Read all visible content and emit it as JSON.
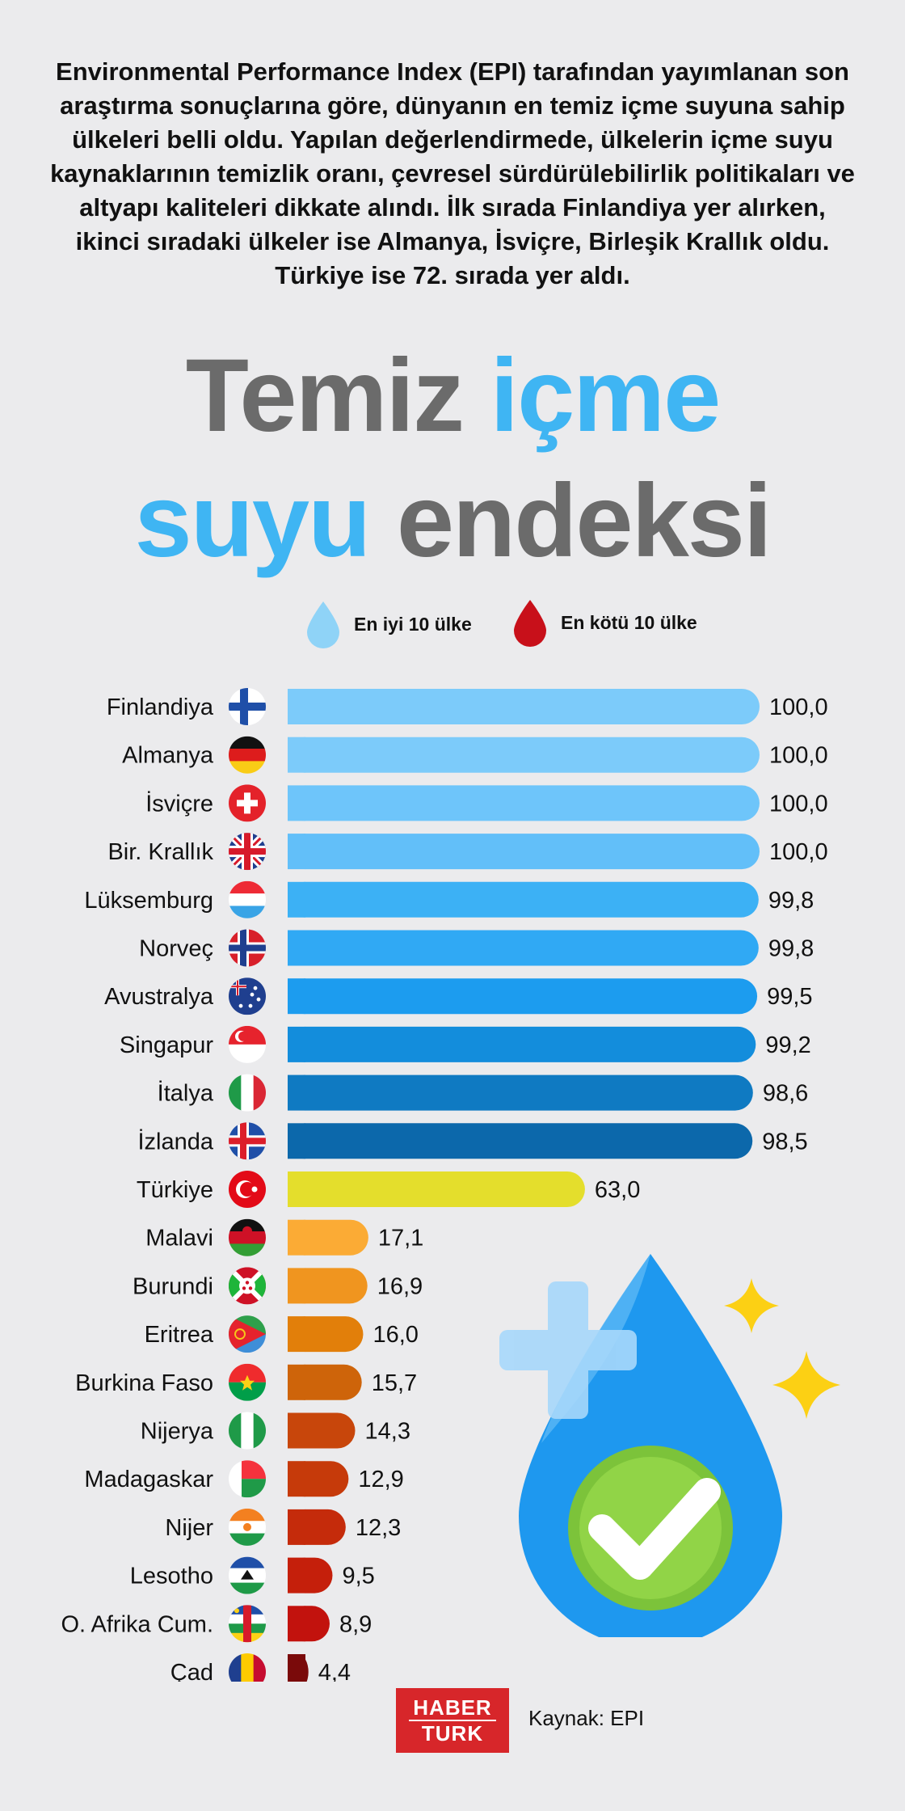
{
  "intro_text": "Environmental Performance Index (EPI) tarafından yayımlanan son araştırma sonuçlarına göre, dünyanın en temiz içme suyuna sahip ülkeleri belli oldu. Yapılan değerlendirmede, ülkelerin içme suyu kaynaklarının temizlik oranı, çevresel sürdürülebilirlik politikaları ve altyapı kaliteleri dikkate alındı. İlk sırada Finlandiya yer alırken, ikinci sıradaki ülkeler ise Almanya, İsviçre, Birleşik Krallık oldu. Türkiye ise 72. sırada yer aldı.",
  "title": {
    "part1": "Temiz",
    "part2": "içme",
    "part3": "suyu",
    "part4": "endeksi"
  },
  "legend": {
    "best": "En iyi 10 ülke",
    "worst": "En kötü 10 ülke"
  },
  "colors": {
    "best_drop": "#8fd3f7",
    "worst_drop": "#c8101a",
    "turkey": "#e4de2c"
  },
  "chart_data": {
    "type": "bar",
    "orientation": "horizontal",
    "title": "Temiz içme suyu endeksi",
    "xlim": [
      0,
      100
    ],
    "categories": [
      "Finlandiya",
      "Almanya",
      "İsviçre",
      "Bir. Krallık",
      "Lüksemburg",
      "Norveç",
      "Avustralya",
      "Singapur",
      "İtalya",
      "İzlanda",
      "Türkiye",
      "Malavi",
      "Burundi",
      "Eritrea",
      "Burkina Faso",
      "Nijerya",
      "Madagaskar",
      "Nijer",
      "Lesotho",
      "O. Afrika Cum.",
      "Çad"
    ],
    "values": [
      100.0,
      100.0,
      100.0,
      100.0,
      99.8,
      99.8,
      99.5,
      99.2,
      98.6,
      98.5,
      63.0,
      17.1,
      16.9,
      16.0,
      15.7,
      14.3,
      12.9,
      12.3,
      9.5,
      8.9,
      4.4
    ],
    "value_labels": [
      "100,0",
      "100,0",
      "100,0",
      "100,0",
      "99,8",
      "99,8",
      "99,5",
      "99,2",
      "98,6",
      "98,5",
      "63,0",
      "17,1",
      "16,9",
      "16,0",
      "15,7",
      "14,3",
      "12,9",
      "12,3",
      "9,5",
      "8,9",
      "4,4"
    ],
    "bar_colors": [
      "#7ccbfa",
      "#7ccbfa",
      "#6ec5fa",
      "#62bff9",
      "#3cb1f5",
      "#30a9f4",
      "#1c9cef",
      "#138ddc",
      "#0f7ac2",
      "#0c68ab",
      "#e4de2c",
      "#fbab35",
      "#f0951f",
      "#e27f0a",
      "#ce640a",
      "#c8460b",
      "#c63a0a",
      "#c52b0b",
      "#c51f0b",
      "#c2120d",
      "#7a0a0a"
    ],
    "groups": [
      "best",
      "best",
      "best",
      "best",
      "best",
      "best",
      "best",
      "best",
      "best",
      "best",
      "turkey",
      "worst",
      "worst",
      "worst",
      "worst",
      "worst",
      "worst",
      "worst",
      "worst",
      "worst",
      "worst"
    ]
  },
  "flags": [
    "finland-flag-icon",
    "germany-flag-icon",
    "switzerland-flag-icon",
    "uk-flag-icon",
    "luxembourg-flag-icon",
    "norway-flag-icon",
    "australia-flag-icon",
    "singapore-flag-icon",
    "italy-flag-icon",
    "iceland-flag-icon",
    "turkey-flag-icon",
    "malawi-flag-icon",
    "burundi-flag-icon",
    "eritrea-flag-icon",
    "burkina-faso-flag-icon",
    "nigeria-flag-icon",
    "madagascar-flag-icon",
    "niger-flag-icon",
    "lesotho-flag-icon",
    "central-african-republic-flag-icon",
    "chad-flag-icon"
  ],
  "footer": {
    "logo_top": "HABER",
    "logo_bottom": "TURK",
    "source": "Kaynak: EPI"
  }
}
